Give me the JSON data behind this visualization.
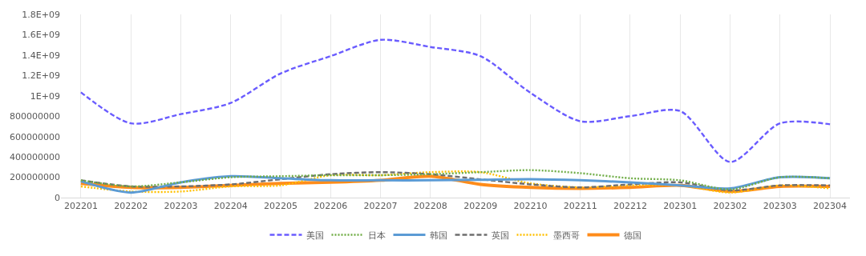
{
  "chart_data": {
    "type": "line",
    "categories": [
      "202201",
      "202202",
      "202203",
      "202204",
      "202205",
      "202206",
      "202207",
      "202208",
      "202209",
      "202210",
      "202211",
      "202212",
      "202301",
      "202302",
      "202303",
      "202304"
    ],
    "ylim": [
      0,
      1800000000
    ],
    "yticks": [
      0,
      200000000,
      400000000,
      600000000,
      800000000,
      {
        "value": 1000000000,
        "label": "1E+09"
      },
      {
        "value": 1200000000,
        "label": "1.2E+09"
      },
      {
        "value": 1400000000,
        "label": "1.4E+09"
      },
      {
        "value": 1600000000,
        "label": "1.6E+09"
      },
      {
        "value": 1800000000,
        "label": "1.8E+09"
      }
    ],
    "grid": "x",
    "legend": "bottom",
    "marker": "none",
    "series": [
      {
        "name": "美国",
        "color": "#6a5cff",
        "line_style": "dashed",
        "values": [
          1035000000,
          730000000,
          820000000,
          930000000,
          1220000000,
          1390000000,
          1550000000,
          1480000000,
          1390000000,
          1030000000,
          750000000,
          800000000,
          850000000,
          350000000,
          730000000,
          720000000
        ]
      },
      {
        "name": "日本",
        "color": "#70ad47",
        "line_style": "dotted",
        "values": [
          170000000,
          110000000,
          150000000,
          200000000,
          210000000,
          220000000,
          220000000,
          230000000,
          250000000,
          270000000,
          240000000,
          190000000,
          170000000,
          80000000,
          200000000,
          190000000
        ]
      },
      {
        "name": "韩国",
        "color": "#5b9bd5",
        "line_style": "solid",
        "values": [
          160000000,
          50000000,
          150000000,
          210000000,
          190000000,
          170000000,
          170000000,
          170000000,
          175000000,
          180000000,
          170000000,
          150000000,
          120000000,
          90000000,
          200000000,
          190000000
        ]
      },
      {
        "name": "英国",
        "color": "#6e6e6e",
        "line_style": "dashed",
        "values": [
          170000000,
          110000000,
          110000000,
          130000000,
          180000000,
          230000000,
          250000000,
          230000000,
          180000000,
          130000000,
          100000000,
          130000000,
          150000000,
          70000000,
          120000000,
          120000000
        ]
      },
      {
        "name": "墨西哥",
        "color": "#ffc000",
        "line_style": "dotted",
        "values": [
          110000000,
          60000000,
          60000000,
          110000000,
          120000000,
          220000000,
          220000000,
          250000000,
          250000000,
          140000000,
          100000000,
          120000000,
          120000000,
          50000000,
          120000000,
          90000000
        ]
      },
      {
        "name": "德国",
        "color": "#ff8c1a",
        "line_style": "solid",
        "values": [
          140000000,
          100000000,
          100000000,
          120000000,
          140000000,
          150000000,
          170000000,
          210000000,
          130000000,
          100000000,
          90000000,
          100000000,
          120000000,
          60000000,
          110000000,
          110000000
        ]
      }
    ]
  }
}
